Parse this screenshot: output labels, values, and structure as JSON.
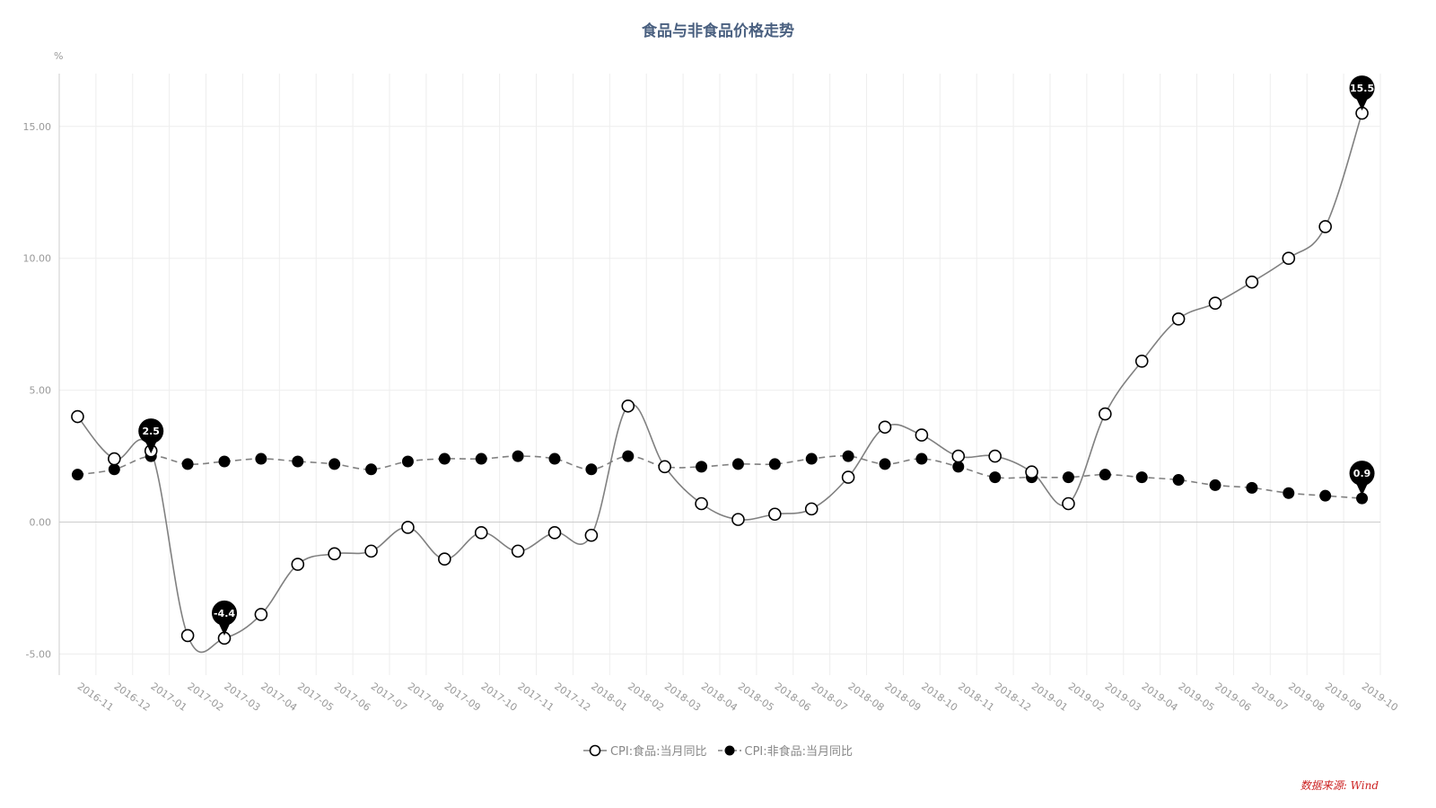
{
  "chart_data": {
    "type": "line",
    "title": "食品与非食品价格走势",
    "ylabel": "%",
    "xlabel": "",
    "ylim": [
      -5.8,
      17
    ],
    "yticks": [
      -5,
      0,
      5,
      10,
      15
    ],
    "ytick_labels": [
      "-5.00",
      "0.00",
      "5.00",
      "10.00",
      "15.00"
    ],
    "grid": true,
    "legend_position": "bottom-center",
    "categories": [
      "2016-11",
      "2016-12",
      "2017-01",
      "2017-02",
      "2017-03",
      "2017-04",
      "2017-05",
      "2017-06",
      "2017-07",
      "2017-08",
      "2017-09",
      "2017-10",
      "2017-11",
      "2017-12",
      "2018-01",
      "2018-02",
      "2018-03",
      "2018-04",
      "2018-05",
      "2018-06",
      "2018-07",
      "2018-08",
      "2018-09",
      "2018-10",
      "2018-11",
      "2018-12",
      "2019-01",
      "2019-02",
      "2019-03",
      "2019-04",
      "2019-05",
      "2019-06",
      "2019-07",
      "2019-08",
      "2019-09",
      "2019-10"
    ],
    "series": [
      {
        "name": "CPI:食品:当月同比",
        "style": "solid",
        "marker": "hollow-circle",
        "color": "#808080",
        "values": [
          4.0,
          2.4,
          2.7,
          -4.3,
          -4.4,
          -3.5,
          -1.6,
          -1.2,
          -1.1,
          -0.2,
          -1.4,
          -0.4,
          -1.1,
          -0.4,
          -0.5,
          4.4,
          2.1,
          0.7,
          0.1,
          0.3,
          0.5,
          1.7,
          3.6,
          3.3,
          2.5,
          2.5,
          1.9,
          0.7,
          4.1,
          6.1,
          7.7,
          8.3,
          9.1,
          10.0,
          11.2,
          15.5
        ]
      },
      {
        "name": "CPI:非食品:当月同比",
        "style": "dashed",
        "marker": "filled-circle",
        "color": "#808080",
        "values": [
          1.8,
          2.0,
          2.5,
          2.2,
          2.3,
          2.4,
          2.3,
          2.2,
          2.0,
          2.3,
          2.4,
          2.4,
          2.5,
          2.4,
          2.0,
          2.5,
          2.1,
          2.1,
          2.2,
          2.2,
          2.4,
          2.5,
          2.2,
          2.4,
          2.1,
          1.7,
          1.7,
          1.7,
          1.8,
          1.7,
          1.6,
          1.4,
          1.3,
          1.1,
          1.0,
          0.9
        ]
      }
    ],
    "annotations": [
      {
        "series": 1,
        "index": 2,
        "label": "2.5"
      },
      {
        "series": 0,
        "index": 4,
        "label": "-4.4"
      },
      {
        "series": 0,
        "index": 35,
        "label": "15.5"
      },
      {
        "series": 1,
        "index": 35,
        "label": "0.9"
      }
    ]
  },
  "source_note": "数据来源: Wind",
  "colors": {
    "title": "#4a6080",
    "line": "#808080",
    "grid": "#eeeeee",
    "axis_text": "#999999",
    "pin": "#000000",
    "source": "#cc2222"
  }
}
